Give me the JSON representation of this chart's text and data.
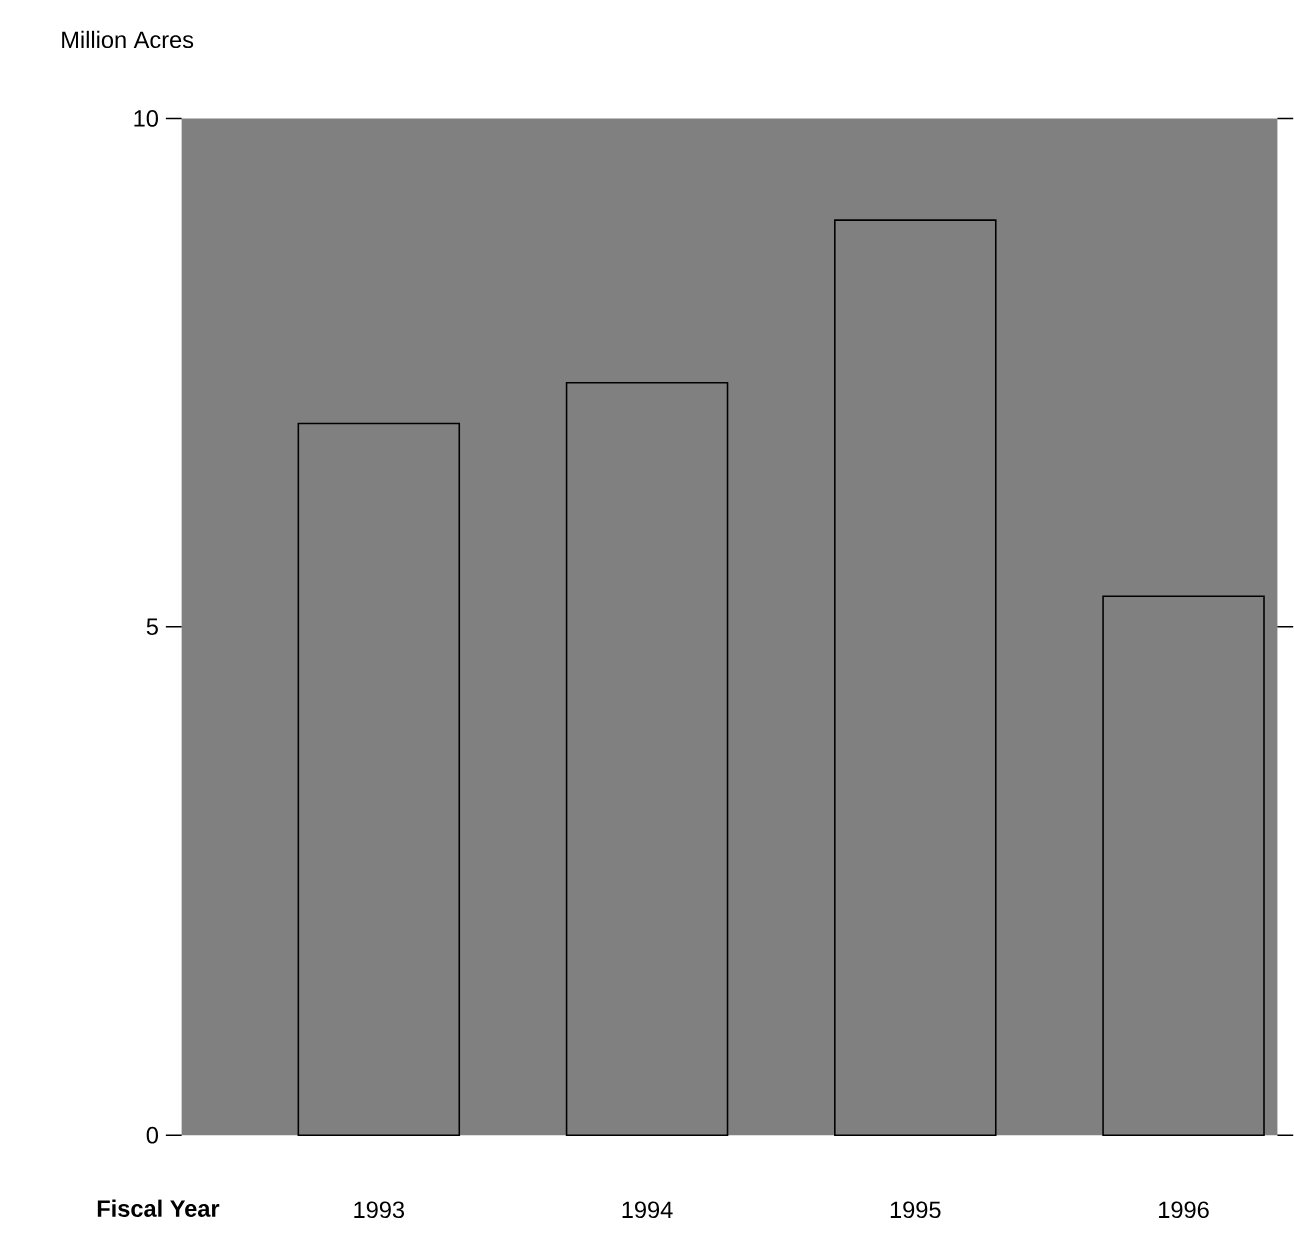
{
  "chart_data": {
    "type": "bar",
    "xlabel": "Fiscal Year",
    "ylabel": "Million Acres",
    "categories": [
      "1993",
      "1994",
      "1995",
      "1996"
    ],
    "values": [
      7.0,
      7.4,
      9.0,
      5.3
    ],
    "color": "#808080",
    "ylim": [
      0,
      10
    ],
    "yticks": [
      0,
      5,
      10
    ]
  }
}
